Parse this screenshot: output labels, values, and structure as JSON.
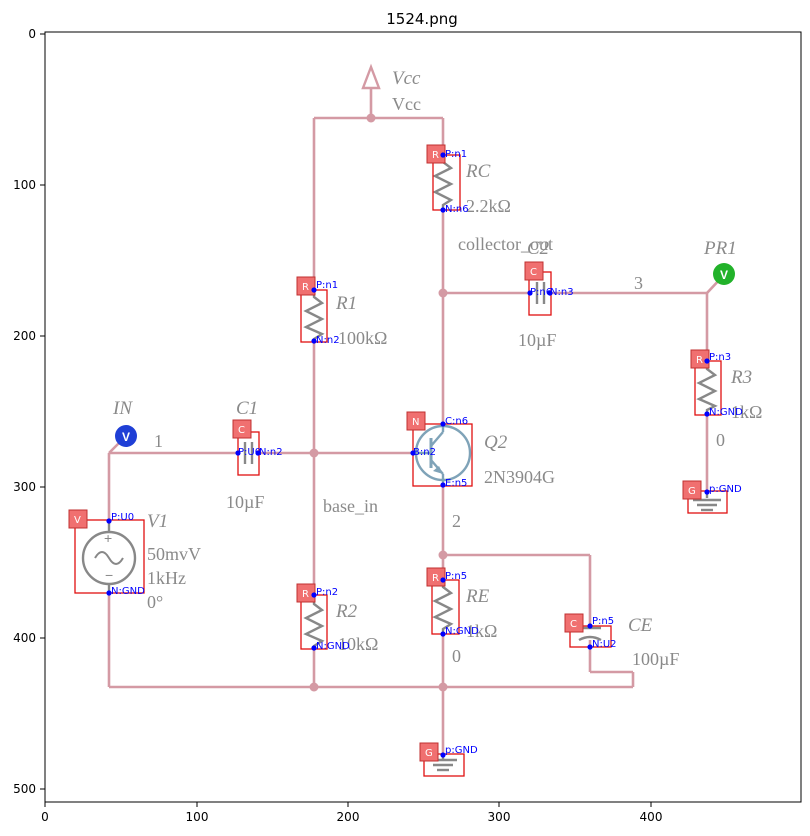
{
  "figure": {
    "title": "1524.png",
    "x_ticks": [
      "0",
      "100",
      "200",
      "300",
      "400"
    ],
    "y_ticks": [
      "0",
      "100",
      "200",
      "300",
      "400",
      "500"
    ]
  },
  "schematic": {
    "labels": {
      "vcc_italic": "Vcc",
      "vcc": "Vcc",
      "rc_name": "RC",
      "rc_value": "2.2kΩ",
      "collector_out": "collector_out",
      "c2_name": "C2",
      "c2_value": "10µF",
      "net3": "3",
      "pr1": "PR1",
      "r1_name": "R1",
      "r1_value": "100kΩ",
      "r3_name": "R3",
      "r3_value": "1kΩ",
      "r3_net": "0",
      "in_name": "IN",
      "c1_name": "C1",
      "net1": "1",
      "c1_value": "10µF",
      "q2_name": "Q2",
      "q2_value": "2N3904G",
      "base_in": "base_in",
      "v1_name": "V1",
      "v1_amp": "50mvV",
      "v1_freq": "1kHz",
      "v1_phase": "0°",
      "net2": "2",
      "r2_name": "R2",
      "r2_value": "10kΩ",
      "re_name": "RE",
      "re_value": "1kΩ",
      "re_net": "0",
      "ce_name": "CE",
      "ce_value": "100µF"
    },
    "probe_glyph": "V"
  },
  "detections": {
    "tags": {
      "rc": "R",
      "r1": "R",
      "c2": "C",
      "r3": "R",
      "c1": "C",
      "q2": "N",
      "v1": "V",
      "r2": "R",
      "re": "R",
      "ce": "C",
      "g_r3": "G",
      "g_bottom": "G"
    },
    "pins": {
      "rc_p": "P:n1",
      "rc_n": "N:n6",
      "r1_p": "P:n1",
      "r1_n": "N:n2",
      "c2_p": "P:n6",
      "c2_n": "N:n3",
      "r3_p": "P:n3",
      "r3_n": "N:GND",
      "c1_p": "P:U0",
      "c1_n": "N:n2",
      "q2_c": "C:n6",
      "q2_b": "B:n2",
      "q2_e": "E:n5",
      "v1_p": "P:U0",
      "v1_n": "N:GND",
      "r2_p": "P:n2",
      "r2_n": "N:GND",
      "re_p": "P:n5",
      "re_n": "N:GND",
      "ce_p": "P:n5",
      "ce_n": "N:U2",
      "g_r3": "p:GND",
      "g_bottom": "p:GND"
    }
  }
}
